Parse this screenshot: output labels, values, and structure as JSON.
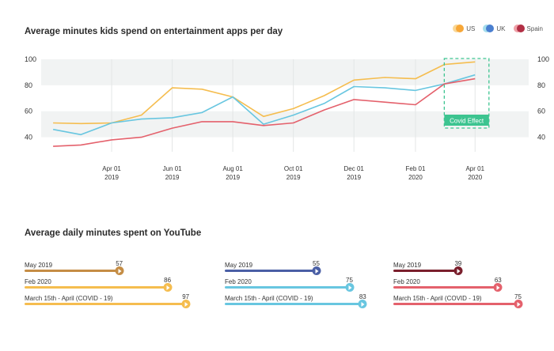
{
  "chart_data": [
    {
      "type": "line",
      "title": "Average minutes kids spend on entertainment apps per day",
      "x": [
        "2019-02-01",
        "2019-03-01",
        "2019-04-01",
        "2019-05-01",
        "2019-06-01",
        "2019-07-01",
        "2019-08-01",
        "2019-09-01",
        "2019-10-01",
        "2019-11-01",
        "2019-12-01",
        "2020-01-01",
        "2020-02-01",
        "2020-03-01",
        "2020-04-01",
        "2020-05-01"
      ],
      "x_tick_labels": [
        {
          "date": "2019-04-01",
          "line1": "Apr 01",
          "line2": "2019"
        },
        {
          "date": "2019-06-01",
          "line1": "Jun 01",
          "line2": "2019"
        },
        {
          "date": "2019-08-01",
          "line1": "Aug 01",
          "line2": "2019"
        },
        {
          "date": "2019-10-01",
          "line1": "Oct 01",
          "line2": "2019"
        },
        {
          "date": "2019-12-01",
          "line1": "Dec 01",
          "line2": "2019"
        },
        {
          "date": "2020-02-01",
          "line1": "Feb 01",
          "line2": "2020"
        },
        {
          "date": "2020-04-01",
          "line1": "Apr 01",
          "line2": "2020"
        }
      ],
      "y_ticks": [
        40,
        60,
        80,
        100
      ],
      "ylim": [
        30,
        100
      ],
      "series": [
        {
          "name": "US",
          "color": "#f5bd4f",
          "values": [
            51,
            50.5,
            51,
            57,
            78,
            77,
            71,
            56,
            62,
            72,
            84,
            86,
            85,
            96,
            98,
            null
          ]
        },
        {
          "name": "UK",
          "color": "#68c6e0",
          "values": [
            46,
            42,
            51,
            54,
            55,
            59,
            71,
            50,
            57,
            66,
            79,
            78,
            76,
            81,
            88,
            null
          ]
        },
        {
          "name": "Spain",
          "color": "#e4616c",
          "values": [
            33,
            34,
            38,
            40,
            47,
            52,
            52,
            49,
            51,
            61,
            69,
            67,
            65,
            81,
            85,
            null
          ]
        }
      ],
      "annotation": {
        "label": "Covid Effect",
        "color": "#3cc490",
        "from": "2020-03-01",
        "to": "2020-04-15"
      },
      "grid": true,
      "legend_position": "top-right"
    },
    {
      "type": "bar",
      "title": "Average daily minutes spent on YouTube",
      "categories": [
        "May 2019",
        "Feb 2020",
        "March 15th - April (COVID - 19)"
      ],
      "xlim": [
        0,
        100
      ],
      "series": [
        {
          "colors": [
            "#c58d45",
            "#f5bd4f",
            "#f5bd4f"
          ],
          "values": [
            57,
            86,
            97
          ]
        },
        {
          "colors": [
            "#4a5fa5",
            "#68c6e0",
            "#68c6e0"
          ],
          "values": [
            55,
            75,
            83
          ]
        },
        {
          "colors": [
            "#7a1f2c",
            "#e4616c",
            "#e4616c"
          ],
          "values": [
            39,
            63,
            75
          ]
        }
      ]
    }
  ],
  "legend": [
    {
      "label": "US",
      "color": "#f5bd4f",
      "shade": "#f7a738"
    },
    {
      "label": "UK",
      "color": "#68c6e0",
      "shade": "#4a7fd0"
    },
    {
      "label": "Spain",
      "color": "#e4616c",
      "shade": "#b22f45"
    }
  ]
}
